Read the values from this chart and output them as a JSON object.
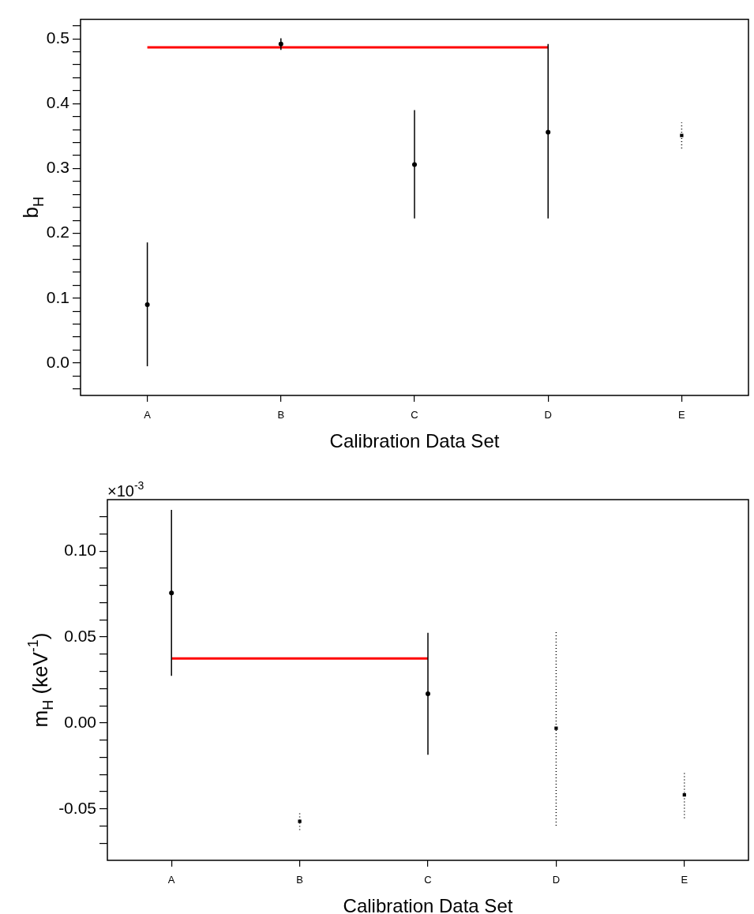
{
  "chart_data": [
    {
      "type": "scatter",
      "xlabel": "Calibration Data Set",
      "ylabel": "b$_{H}$",
      "categories": [
        "A",
        "B",
        "C",
        "D",
        "E"
      ],
      "ylim": [
        -0.05,
        0.53
      ],
      "yticks": [
        {
          "value": -0.04,
          "label": null
        },
        {
          "value": -0.02,
          "label": null
        },
        {
          "value": 0,
          "label": "0.0"
        },
        {
          "value": 0.02,
          "label": null
        },
        {
          "value": 0.04,
          "label": null
        },
        {
          "value": 0.06,
          "label": null
        },
        {
          "value": 0.08,
          "label": null
        },
        {
          "value": 0.1,
          "label": "0.1"
        },
        {
          "value": 0.12,
          "label": null
        },
        {
          "value": 0.14,
          "label": null
        },
        {
          "value": 0.16,
          "label": null
        },
        {
          "value": 0.18,
          "label": null
        },
        {
          "value": 0.2,
          "label": "0.2"
        },
        {
          "value": 0.22,
          "label": null
        },
        {
          "value": 0.24,
          "label": null
        },
        {
          "value": 0.26,
          "label": null
        },
        {
          "value": 0.28,
          "label": null
        },
        {
          "value": 0.3,
          "label": "0.3"
        },
        {
          "value": 0.32,
          "label": null
        },
        {
          "value": 0.34,
          "label": null
        },
        {
          "value": 0.36,
          "label": null
        },
        {
          "value": 0.38,
          "label": null
        },
        {
          "value": 0.4,
          "label": "0.4"
        },
        {
          "value": 0.42,
          "label": null
        },
        {
          "value": 0.44,
          "label": null
        },
        {
          "value": 0.46,
          "label": null
        },
        {
          "value": 0.48,
          "label": null
        },
        {
          "value": 0.5,
          "label": "0.5"
        },
        {
          "value": 0.52,
          "label": null
        }
      ],
      "series": [
        {
          "color": "#000000",
          "marker": "circle",
          "line_style": "solid",
          "values": [
            0.09,
            0.492,
            0.306,
            0.356,
            null
          ],
          "errors": [
            [
              -0.005,
              0.186
            ],
            [
              0.483,
              0.501
            ],
            [
              0.223,
              0.39
            ],
            [
              0.223,
              0.492
            ],
            null
          ]
        },
        {
          "color": "#000000",
          "marker": "square",
          "line_style": "dotted",
          "values": [
            null,
            null,
            null,
            null,
            0.351
          ],
          "errors": [
            null,
            null,
            null,
            null,
            [
              0.331,
              0.371
            ]
          ]
        },
        {
          "type": "line",
          "color": "#ff0000",
          "marker": "none",
          "line_style": "solid",
          "values": [
            0.487,
            0.487,
            0.487,
            0.487,
            null
          ]
        }
      ]
    },
    {
      "type": "scatter",
      "xlabel": "Calibration Data Set",
      "ylabel": "m$_{H}$ (keV$^{-1}$)",
      "annotations": [
        "×10$^{-3}$"
      ],
      "categories": [
        "A",
        "B",
        "C",
        "D",
        "E"
      ],
      "ylim": [
        -0.08,
        0.13
      ],
      "yticks": [
        {
          "value": -0.07,
          "label": null
        },
        {
          "value": -0.06,
          "label": null
        },
        {
          "value": -0.05,
          "label": "-0.05"
        },
        {
          "value": -0.04,
          "label": null
        },
        {
          "value": -0.03,
          "label": null
        },
        {
          "value": -0.02,
          "label": null
        },
        {
          "value": -0.01,
          "label": null
        },
        {
          "value": 0,
          "label": "0.00"
        },
        {
          "value": 0.01,
          "label": null
        },
        {
          "value": 0.02,
          "label": null
        },
        {
          "value": 0.03,
          "label": null
        },
        {
          "value": 0.04,
          "label": null
        },
        {
          "value": 0.05,
          "label": "0.05"
        },
        {
          "value": 0.06,
          "label": null
        },
        {
          "value": 0.07,
          "label": null
        },
        {
          "value": 0.08,
          "label": null
        },
        {
          "value": 0.09,
          "label": null
        },
        {
          "value": 0.1,
          "label": "0.10"
        },
        {
          "value": 0.11,
          "label": null
        },
        {
          "value": 0.12,
          "label": null
        }
      ],
      "series": [
        {
          "color": "#000000",
          "marker": "circle",
          "line_style": "solid",
          "values": [
            0.0757,
            null,
            0.017,
            null,
            null
          ],
          "errors": [
            [
              0.0274,
              0.124
            ],
            null,
            [
              -0.0185,
              0.0524
            ],
            null,
            null
          ]
        },
        {
          "color": "#000000",
          "marker": "square",
          "line_style": "dotted",
          "values": [
            null,
            -0.0573,
            null,
            -0.0031,
            -0.0419
          ],
          "errors": [
            null,
            [
              -0.0623,
              -0.0526
            ],
            null,
            [
              -0.0598,
              0.0533
            ],
            [
              -0.0554,
              -0.0283
            ]
          ]
        },
        {
          "type": "line",
          "color": "#ff0000",
          "marker": "none",
          "line_style": "solid",
          "values": [
            0.0375,
            0.0375,
            0.0375,
            null,
            null
          ]
        }
      ]
    }
  ]
}
